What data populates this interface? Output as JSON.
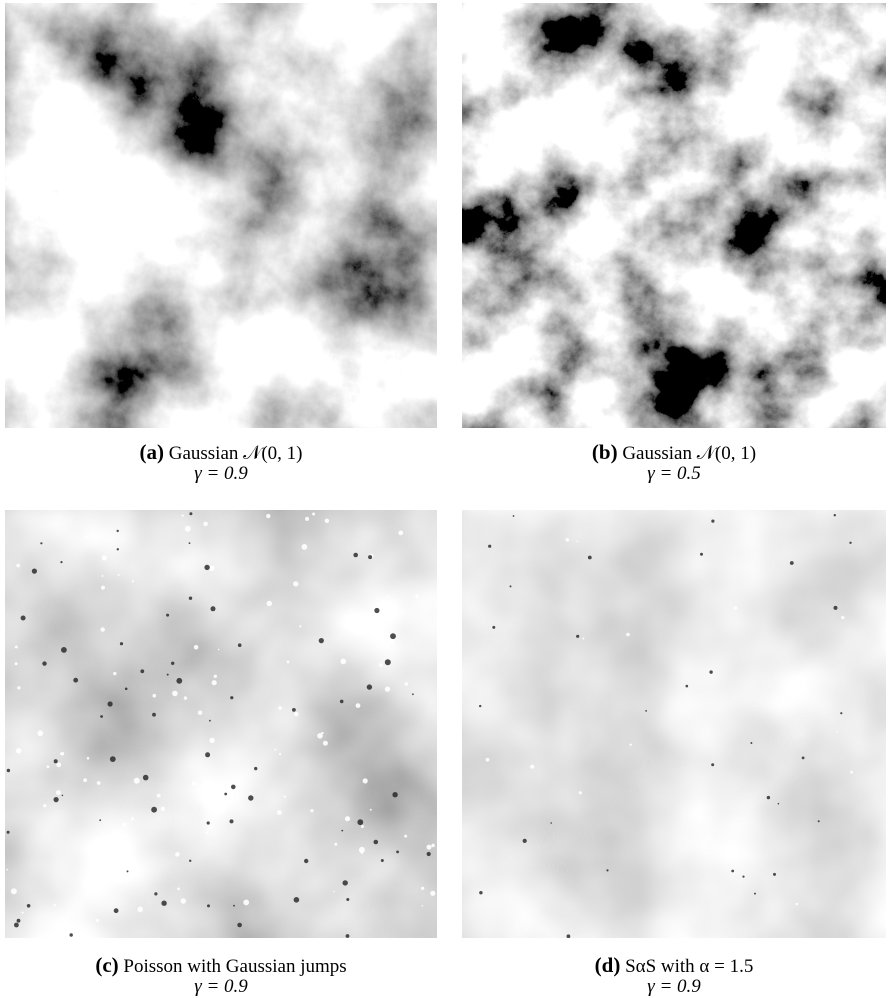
{
  "panels": [
    {
      "label": "(a)",
      "caption": "Gaussian 𝒩(0, 1)",
      "param": "γ = 0.9"
    },
    {
      "label": "(b)",
      "caption": "Gaussian 𝒩(0, 1)",
      "param": "γ = 0.5"
    },
    {
      "label": "(c)",
      "caption": "Poisson with Gaussian jumps",
      "param": "γ = 0.9"
    },
    {
      "label": "(d)",
      "caption": "SαS with α = 1.5",
      "param": "γ = 0.9"
    }
  ]
}
